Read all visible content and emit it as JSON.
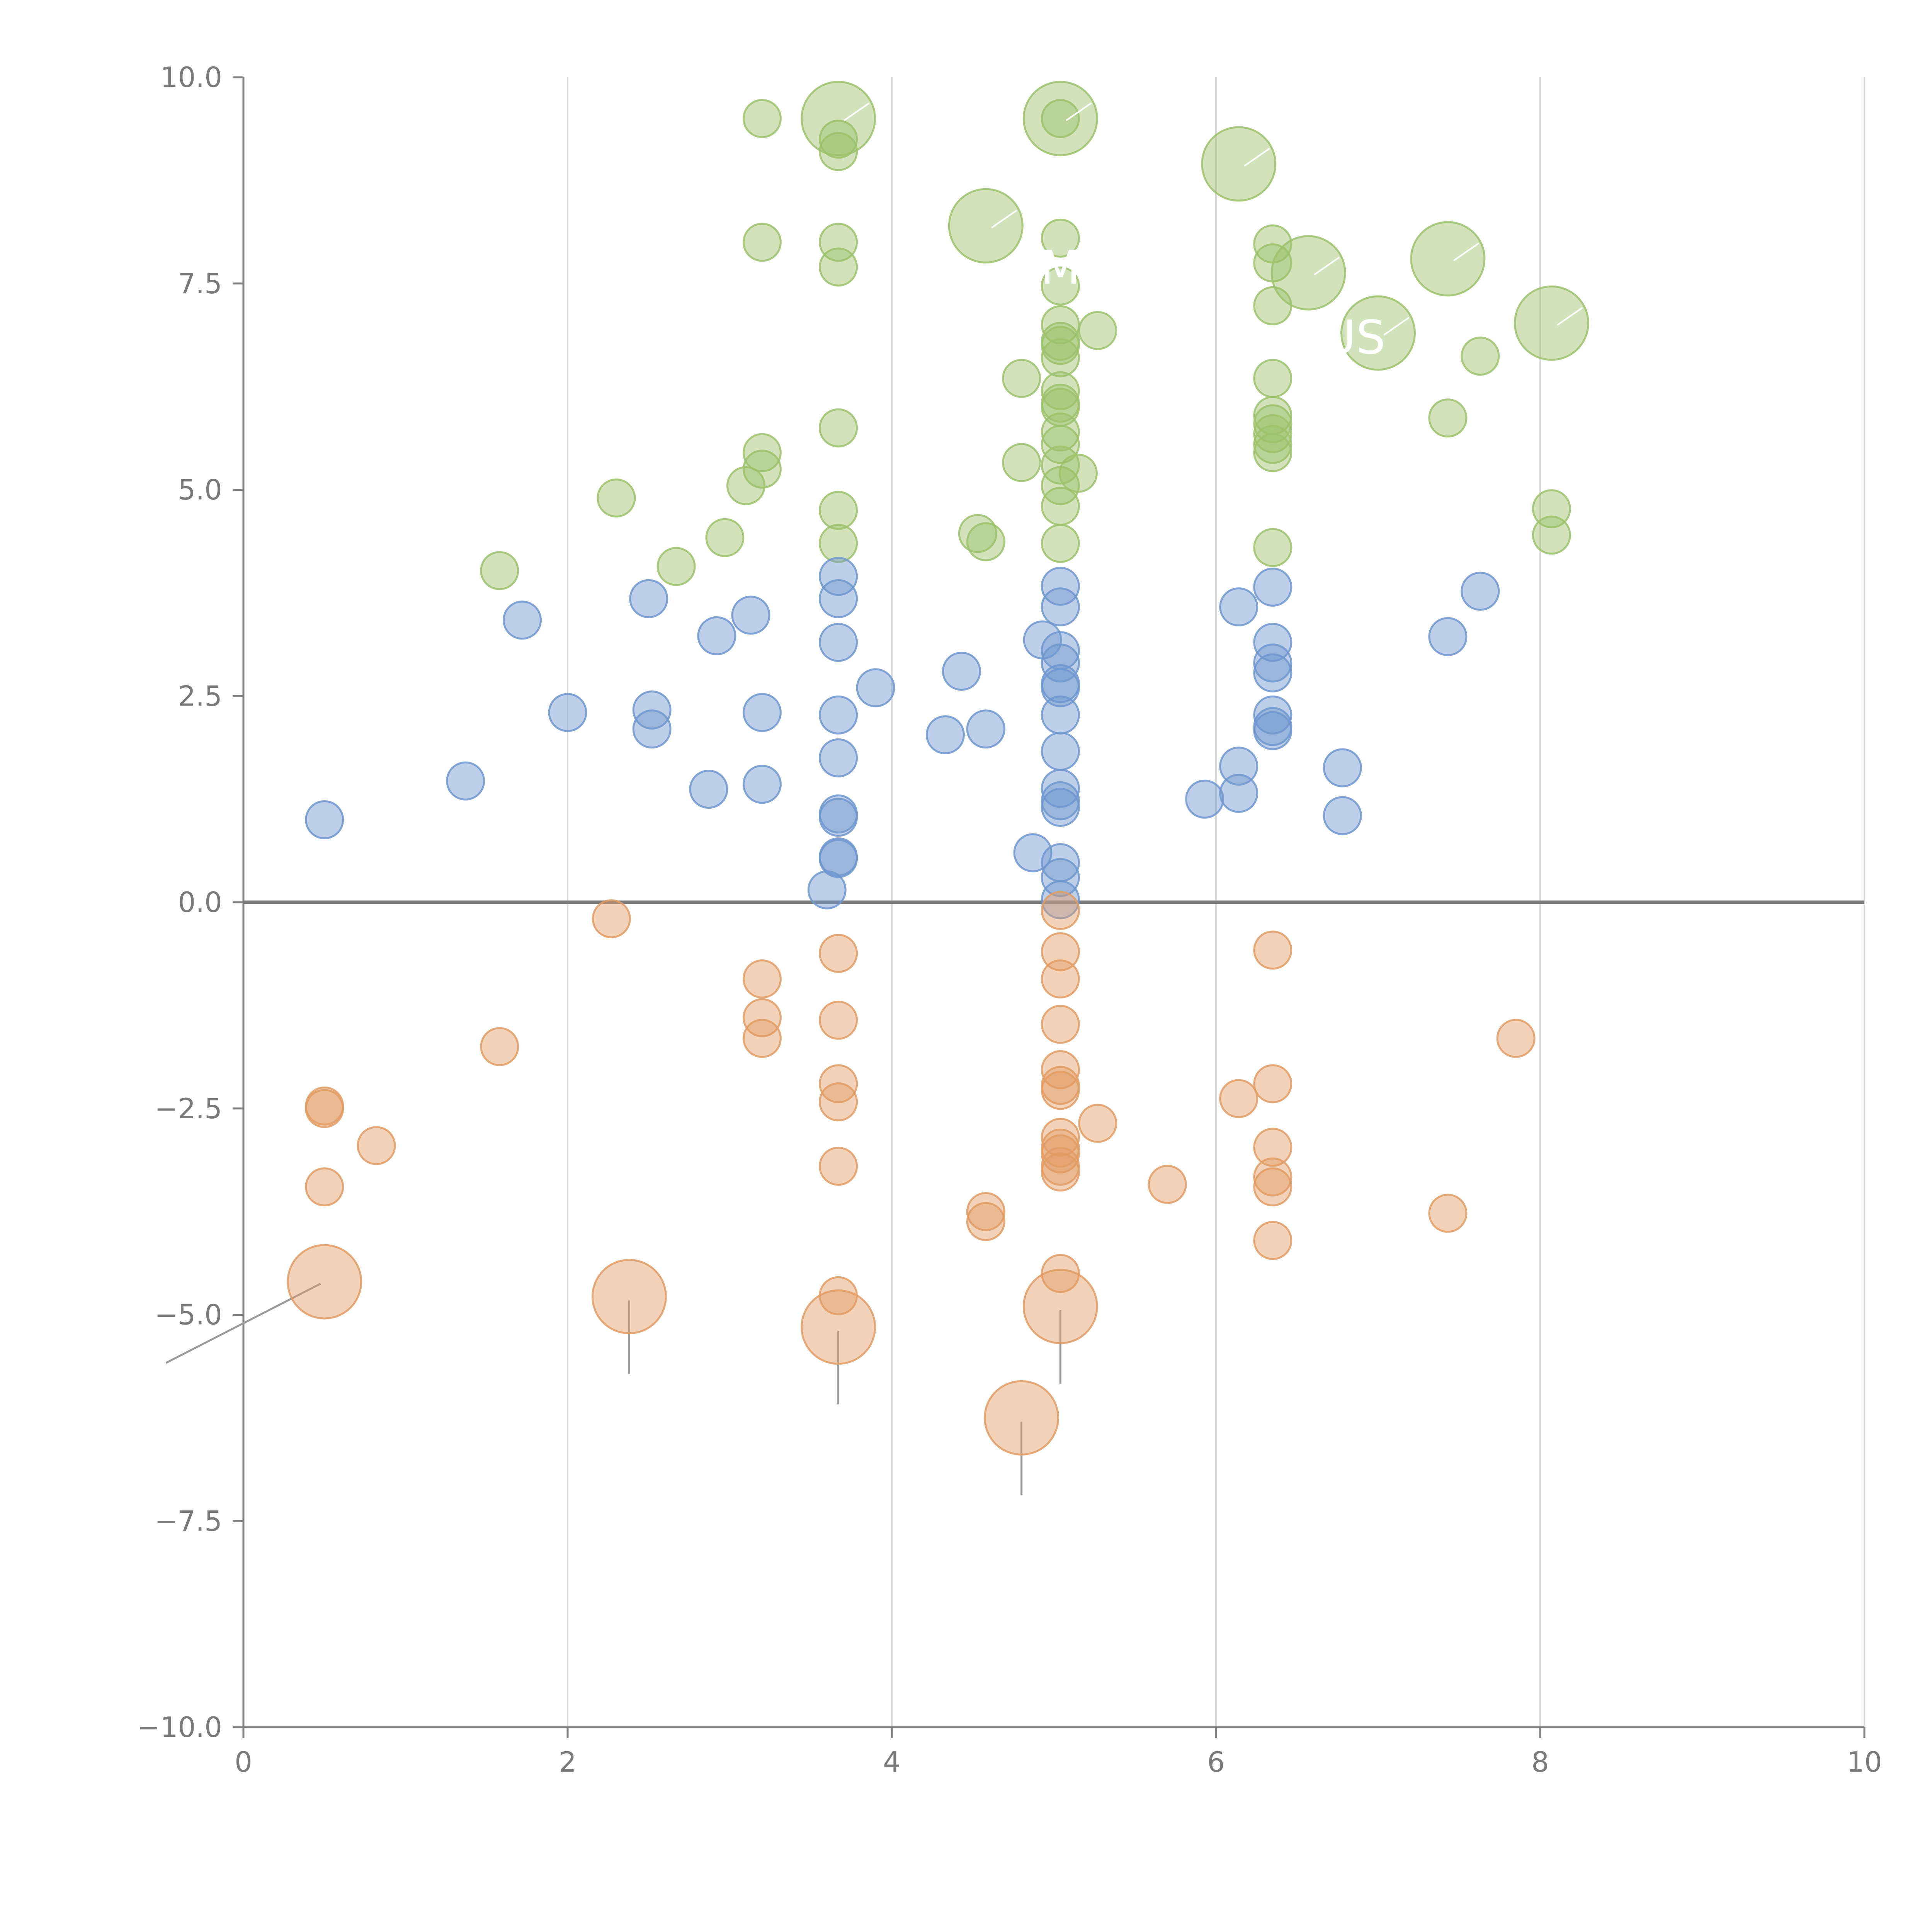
{
  "chart_data": {
    "type": "scatter",
    "title": "",
    "xlabel": "",
    "ylabel": "",
    "xlim": [
      0,
      10
    ],
    "ylim": [
      -10,
      10
    ],
    "grid": {
      "x": true,
      "y": false
    },
    "zero_line": true,
    "x_ticks": [
      0,
      2,
      4,
      6,
      8,
      10
    ],
    "x_tick_labels": [
      "0",
      "2",
      "4",
      "6",
      "8",
      "10"
    ],
    "y_ticks": [
      10,
      7.5,
      5,
      2.5,
      0,
      -2.5,
      -5,
      -7.5,
      -10
    ],
    "y_tick_labels": [
      "10.0",
      "7.5",
      "5.0",
      "2.5",
      "0.0",
      "−2.5",
      "−5.0",
      "−7.5",
      "−10.0"
    ],
    "colors": {
      "green": "#9cc26b",
      "blue": "#6f97cf",
      "orange": "#e29c63",
      "axis": "#808080",
      "grid": "#d9d9d9",
      "zero_line": "#7a7a7a",
      "callout_line": "#9a9a9a"
    },
    "series": [
      {
        "name": "green",
        "points": [
          [
            3.2,
            9.5
          ],
          [
            3.67,
            9.25
          ],
          [
            3.67,
            9.1
          ],
          [
            3.2,
            8.0
          ],
          [
            3.67,
            8.0
          ],
          [
            3.67,
            7.7
          ],
          [
            5.04,
            9.5
          ],
          [
            5.04,
            8.05
          ],
          [
            5.04,
            7.47
          ],
          [
            5.04,
            7.0
          ],
          [
            5.04,
            6.8
          ],
          [
            5.04,
            6.75
          ],
          [
            5.04,
            6.6
          ],
          [
            5.04,
            6.2
          ],
          [
            5.04,
            6.05
          ],
          [
            5.04,
            6.0
          ],
          [
            5.04,
            5.7
          ],
          [
            5.04,
            5.55
          ],
          [
            5.04,
            5.3
          ],
          [
            5.04,
            5.05
          ],
          [
            5.04,
            4.8
          ],
          [
            5.04,
            4.35
          ],
          [
            5.27,
            6.93
          ],
          [
            5.15,
            5.2
          ],
          [
            4.8,
            6.35
          ],
          [
            4.8,
            5.33
          ],
          [
            4.53,
            4.47
          ],
          [
            4.58,
            4.37
          ],
          [
            3.67,
            5.75
          ],
          [
            3.67,
            4.75
          ],
          [
            3.67,
            4.35
          ],
          [
            3.2,
            5.45
          ],
          [
            3.2,
            5.25
          ],
          [
            3.1,
            5.05
          ],
          [
            2.97,
            4.42
          ],
          [
            2.67,
            4.07
          ],
          [
            2.3,
            4.9
          ],
          [
            1.58,
            4.02
          ],
          [
            6.35,
            7.98
          ],
          [
            6.35,
            7.75
          ],
          [
            6.35,
            7.23
          ],
          [
            6.35,
            6.35
          ],
          [
            6.35,
            5.9
          ],
          [
            6.35,
            5.8
          ],
          [
            6.35,
            5.68
          ],
          [
            6.35,
            5.55
          ],
          [
            6.35,
            5.45
          ],
          [
            6.35,
            4.3
          ],
          [
            7.63,
            6.62
          ],
          [
            7.43,
            5.87
          ],
          [
            8.07,
            4.77
          ],
          [
            8.07,
            4.45
          ]
        ]
      },
      {
        "name": "green-large",
        "points": [
          [
            3.67,
            9.5
          ],
          [
            5.04,
            9.5
          ],
          [
            6.14,
            8.95
          ],
          [
            4.58,
            8.2
          ],
          [
            6.57,
            7.63
          ],
          [
            7.43,
            7.8
          ],
          [
            7.0,
            6.9
          ],
          [
            8.07,
            7.02
          ]
        ]
      },
      {
        "name": "blue",
        "points": [
          [
            0.5,
            1.0
          ],
          [
            1.37,
            1.47
          ],
          [
            1.72,
            3.42
          ],
          [
            2.0,
            2.3
          ],
          [
            2.5,
            3.68
          ],
          [
            2.52,
            2.33
          ],
          [
            2.52,
            2.1
          ],
          [
            2.87,
            1.37
          ],
          [
            2.92,
            3.23
          ],
          [
            3.13,
            3.48
          ],
          [
            3.2,
            2.3
          ],
          [
            3.2,
            1.43
          ],
          [
            3.67,
            3.95
          ],
          [
            3.67,
            3.68
          ],
          [
            3.67,
            3.15
          ],
          [
            3.67,
            2.27
          ],
          [
            3.67,
            1.75
          ],
          [
            3.67,
            1.07
          ],
          [
            3.67,
            1.03
          ],
          [
            3.67,
            0.55
          ],
          [
            3.67,
            0.53
          ],
          [
            3.6,
            0.15
          ],
          [
            3.9,
            2.6
          ],
          [
            4.33,
            2.03
          ],
          [
            4.43,
            2.8
          ],
          [
            4.58,
            2.1
          ],
          [
            4.87,
            0.6
          ],
          [
            4.93,
            3.18
          ],
          [
            5.04,
            3.83
          ],
          [
            5.04,
            3.58
          ],
          [
            5.04,
            3.05
          ],
          [
            5.04,
            2.9
          ],
          [
            5.04,
            2.65
          ],
          [
            5.04,
            2.6
          ],
          [
            5.04,
            2.27
          ],
          [
            5.04,
            1.83
          ],
          [
            5.04,
            1.38
          ],
          [
            5.04,
            1.23
          ],
          [
            5.04,
            1.15
          ],
          [
            5.04,
            0.48
          ],
          [
            5.04,
            0.3
          ],
          [
            5.04,
            0.03
          ],
          [
            5.93,
            1.25
          ],
          [
            6.14,
            3.58
          ],
          [
            6.14,
            1.65
          ],
          [
            6.14,
            1.32
          ],
          [
            6.35,
            3.82
          ],
          [
            6.35,
            3.15
          ],
          [
            6.35,
            2.9
          ],
          [
            6.35,
            2.78
          ],
          [
            6.35,
            2.27
          ],
          [
            6.35,
            2.13
          ],
          [
            6.35,
            2.08
          ],
          [
            6.78,
            1.63
          ],
          [
            6.78,
            1.05
          ],
          [
            7.43,
            3.22
          ],
          [
            7.63,
            3.77
          ]
        ]
      },
      {
        "name": "orange",
        "points": [
          [
            2.27,
            -0.2
          ],
          [
            1.58,
            -1.75
          ],
          [
            0.5,
            -2.47
          ],
          [
            0.5,
            -2.5
          ],
          [
            0.82,
            -2.95
          ],
          [
            0.5,
            -3.45
          ],
          [
            3.2,
            -0.93
          ],
          [
            3.2,
            -1.4
          ],
          [
            3.2,
            -1.65
          ],
          [
            3.67,
            -0.62
          ],
          [
            3.67,
            -1.43
          ],
          [
            3.67,
            -2.2
          ],
          [
            3.67,
            -2.42
          ],
          [
            3.67,
            -3.2
          ],
          [
            3.67,
            -4.77
          ],
          [
            5.04,
            -0.1
          ],
          [
            5.04,
            -0.6
          ],
          [
            5.04,
            -0.93
          ],
          [
            5.04,
            -1.48
          ],
          [
            5.04,
            -2.03
          ],
          [
            5.04,
            -2.22
          ],
          [
            5.04,
            -2.28
          ],
          [
            5.04,
            -2.85
          ],
          [
            5.04,
            -2.98
          ],
          [
            5.04,
            -3.05
          ],
          [
            5.04,
            -3.2
          ],
          [
            5.04,
            -3.27
          ],
          [
            5.04,
            -4.5
          ],
          [
            5.27,
            -2.68
          ],
          [
            4.58,
            -3.75
          ],
          [
            4.58,
            -3.87
          ],
          [
            5.7,
            -3.42
          ],
          [
            6.14,
            -2.38
          ],
          [
            6.35,
            -0.58
          ],
          [
            6.35,
            -2.2
          ],
          [
            6.35,
            -2.97
          ],
          [
            6.35,
            -3.33
          ],
          [
            6.35,
            -3.45
          ],
          [
            6.35,
            -4.1
          ],
          [
            7.43,
            -3.77
          ],
          [
            7.85,
            -1.65
          ]
        ]
      },
      {
        "name": "orange-large",
        "points": [
          [
            0.5,
            -4.6
          ],
          [
            2.38,
            -4.78
          ],
          [
            3.67,
            -5.15
          ],
          [
            5.04,
            -4.9
          ],
          [
            4.8,
            -6.25
          ]
        ]
      }
    ],
    "callouts": [
      {
        "label": "M",
        "x": 5.04,
        "y": 7.5,
        "from": [
          4.58,
          8.2
        ]
      },
      {
        "label": "US",
        "x": 6.85,
        "y": 6.65,
        "from": [
          6.57,
          7.63
        ]
      }
    ]
  }
}
